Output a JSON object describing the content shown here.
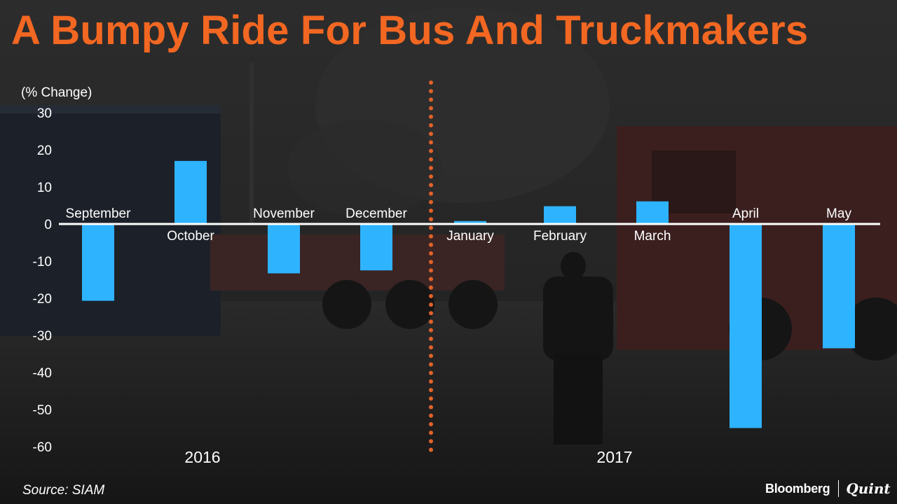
{
  "title": "A Bumpy Ride For Bus And Truckmakers",
  "source": "Source: SIAM",
  "brand": {
    "name_left": "Bloomberg",
    "name_right": "Quint"
  },
  "colors": {
    "title": "#f26722",
    "bar": "#2eb3ff",
    "axis": "#ffffff",
    "divider": "#e0622a",
    "text": "#ffffff"
  },
  "chart_data": {
    "type": "bar",
    "ylabel": "(% Change)",
    "ylim": [
      -60,
      30
    ],
    "yticks": [
      30,
      20,
      10,
      0,
      -10,
      -20,
      -30,
      -40,
      -50,
      -60
    ],
    "categories": [
      "September",
      "October",
      "November",
      "December",
      "January",
      "February",
      "March",
      "April",
      "May"
    ],
    "values": [
      -20.7,
      17,
      -13.3,
      -12.5,
      0.8,
      4.8,
      6.1,
      -55,
      -33.5
    ],
    "year_groups": [
      {
        "label": "2016",
        "categories": [
          "September",
          "October",
          "November",
          "December"
        ]
      },
      {
        "label": "2017",
        "categories": [
          "January",
          "February",
          "March",
          "April",
          "May"
        ]
      }
    ],
    "divider_between": [
      "December",
      "January"
    ],
    "grid": false
  }
}
